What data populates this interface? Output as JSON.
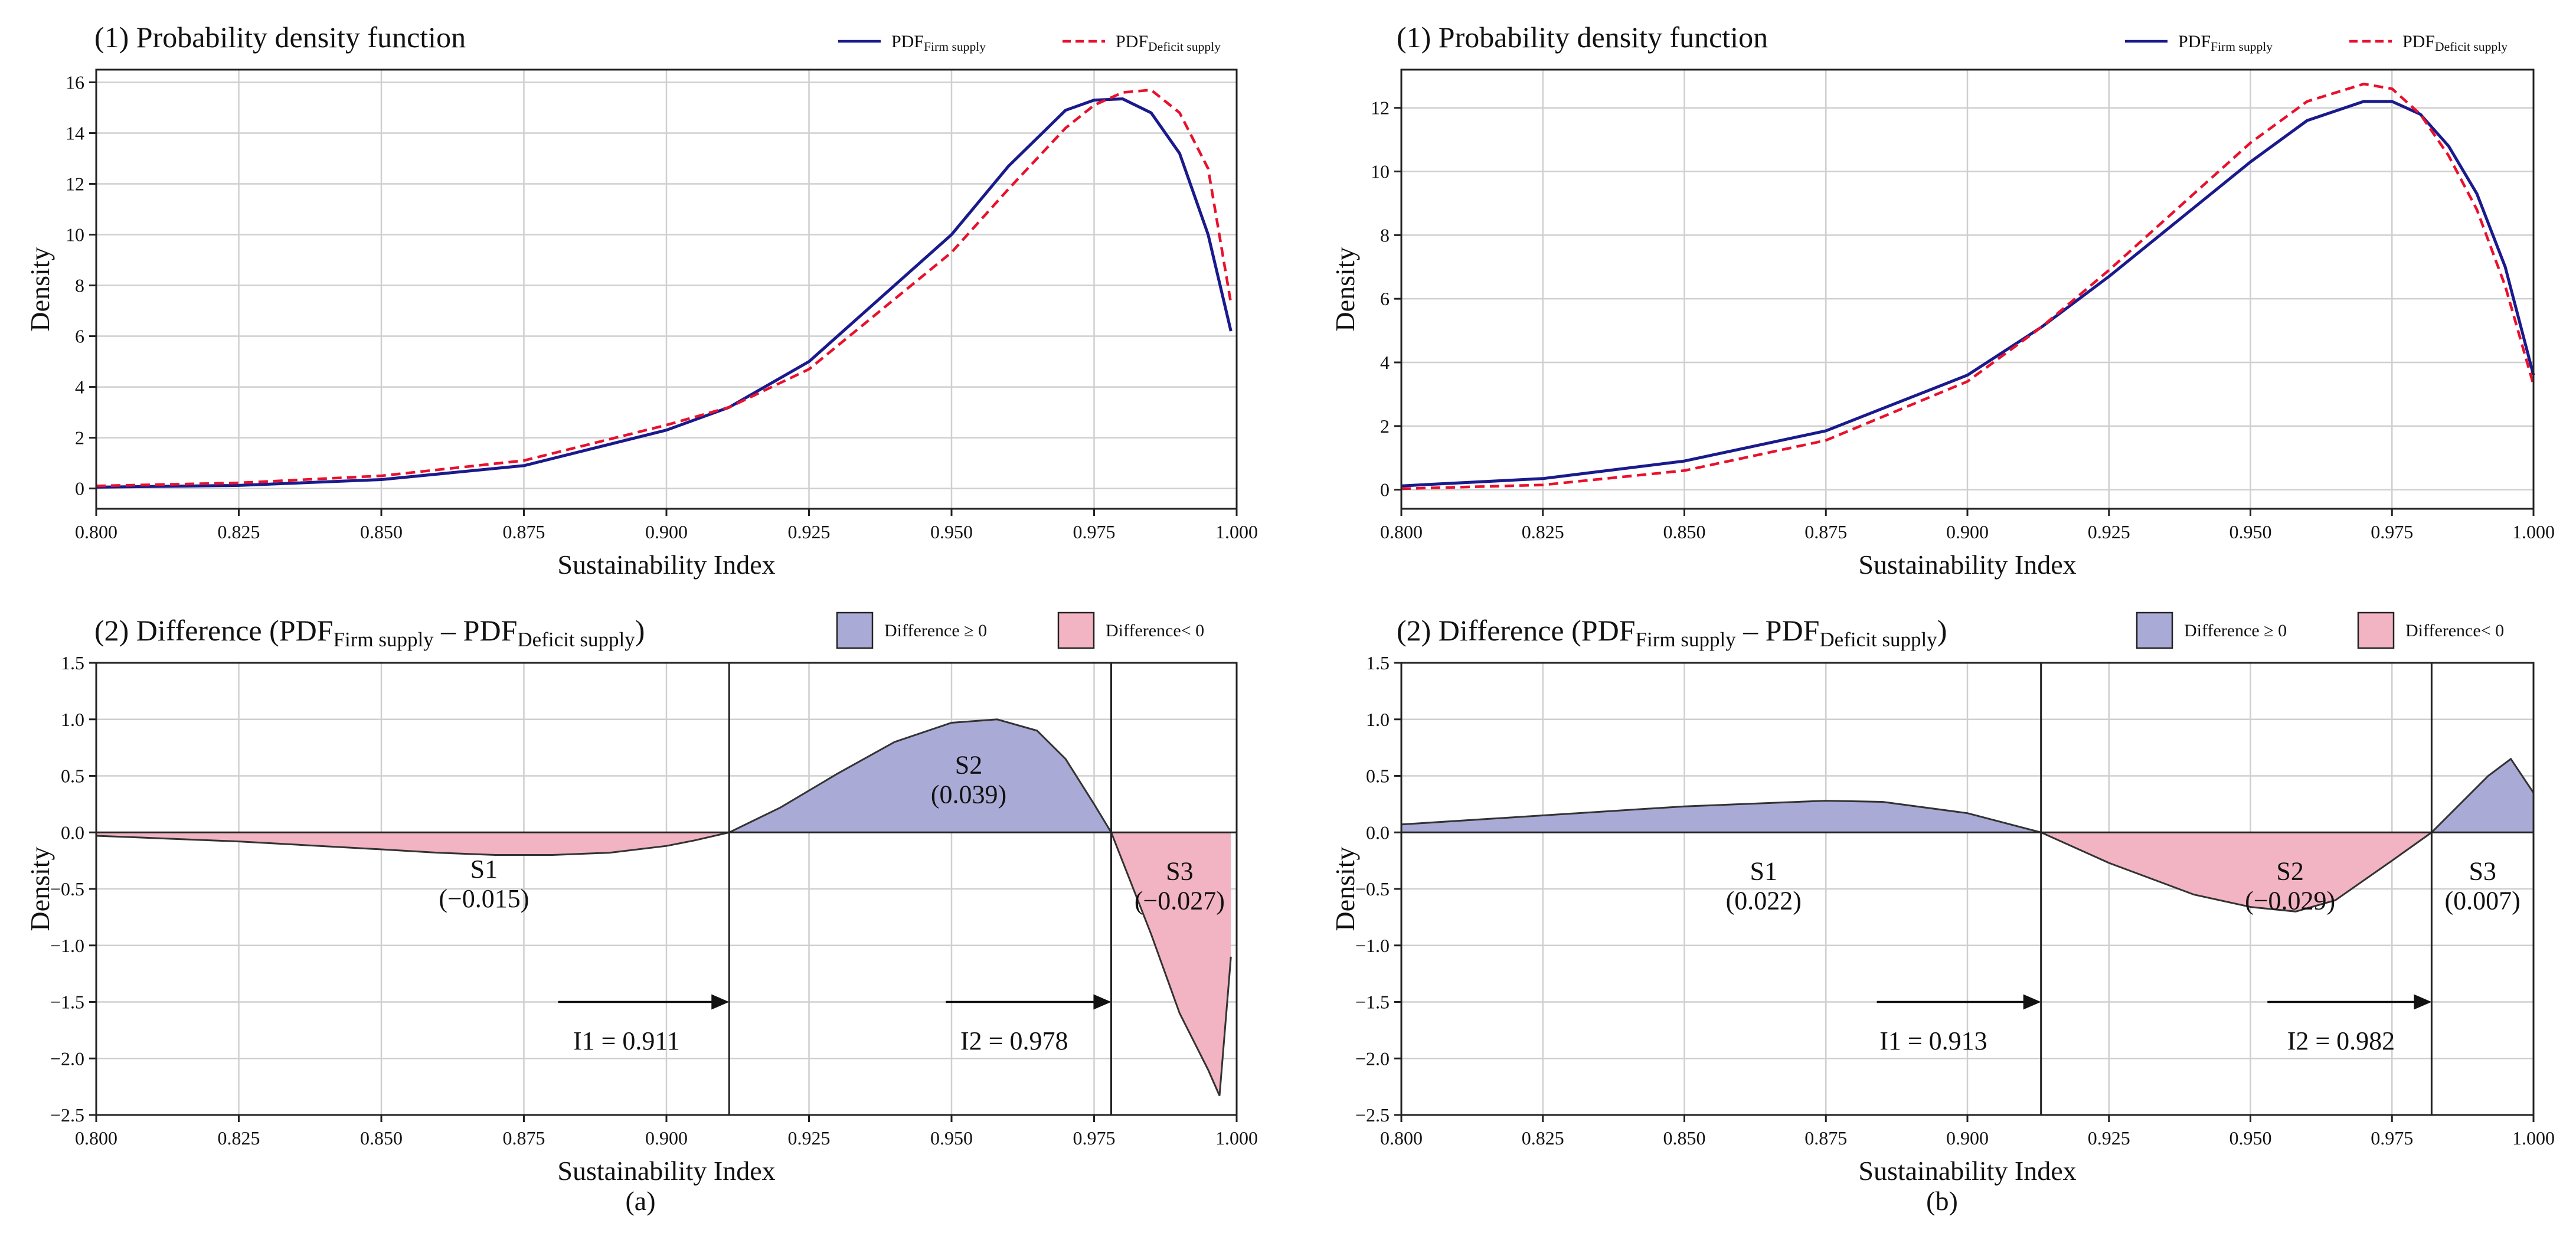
{
  "chart_data": [
    {
      "id": "a1",
      "type": "line",
      "title": "(1) Probability density function",
      "xlabel": "Sustainability Index",
      "ylabel": "Density",
      "xlim": [
        0.8,
        1.0
      ],
      "ylim": [
        -0.8,
        16.5
      ],
      "xticks": [
        0.8,
        0.825,
        0.85,
        0.875,
        0.9,
        0.925,
        0.95,
        0.975,
        1.0
      ],
      "xtick_labels": [
        "0.800",
        "0.825",
        "0.850",
        "0.875",
        "0.900",
        "0.925",
        "0.950",
        "0.975",
        "1.000"
      ],
      "yticks": [
        0,
        2,
        4,
        6,
        8,
        10,
        12,
        14,
        16
      ],
      "ytick_labels": [
        "0",
        "2",
        "4",
        "6",
        "8",
        "10",
        "12",
        "14",
        "16"
      ],
      "legend": [
        {
          "name": "PDF",
          "sub": "Firm supply",
          "color": "#1a1a8c",
          "dash": "solid"
        },
        {
          "name": "PDF",
          "sub": "Deficit supply",
          "color": "#e8112d",
          "dash": "dashed"
        }
      ],
      "series": [
        {
          "name": "PDF Firm supply",
          "color": "#1a1a8c",
          "dash": "solid",
          "x": [
            0.8,
            0.825,
            0.85,
            0.875,
            0.9,
            0.911,
            0.925,
            0.95,
            0.96,
            0.97,
            0.975,
            0.98,
            0.985,
            0.99,
            0.995,
            0.999
          ],
          "y": [
            0.05,
            0.12,
            0.35,
            0.9,
            2.3,
            3.2,
            5.0,
            10.0,
            12.7,
            14.9,
            15.3,
            15.35,
            14.8,
            13.2,
            10.0,
            6.2
          ]
        },
        {
          "name": "PDF Deficit supply",
          "color": "#e8112d",
          "dash": "dashed",
          "x": [
            0.8,
            0.825,
            0.85,
            0.875,
            0.9,
            0.911,
            0.925,
            0.95,
            0.96,
            0.97,
            0.975,
            0.98,
            0.985,
            0.99,
            0.995,
            0.999
          ],
          "y": [
            0.1,
            0.22,
            0.5,
            1.1,
            2.5,
            3.2,
            4.7,
            9.3,
            11.8,
            14.2,
            15.1,
            15.6,
            15.7,
            14.8,
            12.6,
            7.3
          ]
        }
      ]
    },
    {
      "id": "a2",
      "type": "area",
      "title": "(2) Difference (PDF",
      "title_sub1": "Firm supply",
      "title_mid": " – PDF",
      "title_sub2": "Deficit supply",
      "title_end": ")",
      "xlabel": "Sustainability Index",
      "ylabel": "Density",
      "xlim": [
        0.8,
        1.0
      ],
      "ylim": [
        -2.5,
        1.5
      ],
      "xticks": [
        0.8,
        0.825,
        0.85,
        0.875,
        0.9,
        0.925,
        0.95,
        0.975,
        1.0
      ],
      "xtick_labels": [
        "0.800",
        "0.825",
        "0.850",
        "0.875",
        "0.900",
        "0.925",
        "0.950",
        "0.975",
        "1.000"
      ],
      "yticks": [
        -2.5,
        -2.0,
        -1.5,
        -1.0,
        -0.5,
        0.0,
        0.5,
        1.0,
        1.5
      ],
      "ytick_labels": [
        "−2.5",
        "−2.0",
        "−1.5",
        "−1.0",
        "−0.5",
        "0.0",
        "0.5",
        "1.0",
        "1.5"
      ],
      "legend": [
        {
          "label": "Difference ≥ 0",
          "color": "#aaaad6"
        },
        {
          "label": "Difference< 0",
          "color": "#f2b3c2"
        }
      ],
      "pos_color": "#aaaad6",
      "neg_color": "#f2b3c2",
      "series": [
        {
          "name": "Difference",
          "x": [
            0.8,
            0.825,
            0.85,
            0.86,
            0.87,
            0.875,
            0.88,
            0.89,
            0.9,
            0.905,
            0.911,
            0.92,
            0.93,
            0.94,
            0.95,
            0.958,
            0.965,
            0.97,
            0.975,
            0.978,
            0.985,
            0.99,
            0.995,
            0.997,
            0.999
          ],
          "y": [
            -0.03,
            -0.08,
            -0.15,
            -0.18,
            -0.2,
            -0.2,
            -0.2,
            -0.18,
            -0.12,
            -0.07,
            0.0,
            0.22,
            0.52,
            0.8,
            0.97,
            1.0,
            0.9,
            0.65,
            0.25,
            0.0,
            -0.9,
            -1.6,
            -2.1,
            -2.33,
            -1.1
          ]
        }
      ],
      "vlines": [
        0.911,
        0.978
      ],
      "regions": [
        {
          "name": "S1",
          "value": "(−0.015)",
          "x": 0.868,
          "y": -0.4
        },
        {
          "name": "S2",
          "value": "(0.039)",
          "x": 0.953,
          "y": 0.52
        },
        {
          "name": "S3",
          "value": "(−0.027)",
          "x": 0.99,
          "y": -0.42
        }
      ],
      "arrows": [
        {
          "label": "I1 = 0.911",
          "from": 0.881,
          "to": 0.911,
          "y": -1.5,
          "label_x": 0.893,
          "label_y": -1.92
        },
        {
          "label": "I2 = 0.978",
          "from": 0.949,
          "to": 0.978,
          "y": -1.5,
          "label_x": 0.961,
          "label_y": -1.92
        }
      ]
    },
    {
      "id": "b1",
      "type": "line",
      "title": "(1) Probability density function",
      "xlabel": "Sustainability Index",
      "ylabel": "Density",
      "xlim": [
        0.8,
        1.0
      ],
      "ylim": [
        -0.6,
        13.2
      ],
      "xticks": [
        0.8,
        0.825,
        0.85,
        0.875,
        0.9,
        0.925,
        0.95,
        0.975,
        1.0
      ],
      "xtick_labels": [
        "0.800",
        "0.825",
        "0.850",
        "0.875",
        "0.900",
        "0.925",
        "0.950",
        "0.975",
        "1.000"
      ],
      "yticks": [
        0,
        2,
        4,
        6,
        8,
        10,
        12
      ],
      "ytick_labels": [
        "0",
        "2",
        "4",
        "6",
        "8",
        "10",
        "12"
      ],
      "legend": [
        {
          "name": "PDF",
          "sub": "Firm supply",
          "color": "#1a1a8c",
          "dash": "solid"
        },
        {
          "name": "PDF",
          "sub": "Deficit supply",
          "color": "#e8112d",
          "dash": "dashed"
        }
      ],
      "series": [
        {
          "name": "PDF Firm supply",
          "color": "#1a1a8c",
          "dash": "solid",
          "x": [
            0.8,
            0.825,
            0.85,
            0.875,
            0.9,
            0.913,
            0.925,
            0.95,
            0.96,
            0.97,
            0.975,
            0.98,
            0.985,
            0.99,
            0.995,
            1.0
          ],
          "y": [
            0.12,
            0.35,
            0.9,
            1.85,
            3.6,
            5.1,
            6.7,
            10.3,
            11.6,
            12.2,
            12.2,
            11.8,
            10.8,
            9.3,
            7.0,
            3.6
          ]
        },
        {
          "name": "PDF Deficit supply",
          "color": "#e8112d",
          "dash": "dashed",
          "x": [
            0.8,
            0.825,
            0.85,
            0.875,
            0.9,
            0.913,
            0.925,
            0.95,
            0.96,
            0.97,
            0.975,
            0.98,
            0.985,
            0.99,
            0.995,
            1.0
          ],
          "y": [
            0.03,
            0.15,
            0.6,
            1.55,
            3.4,
            5.1,
            6.9,
            10.9,
            12.2,
            12.75,
            12.6,
            11.8,
            10.5,
            8.8,
            6.4,
            3.3
          ]
        }
      ]
    },
    {
      "id": "b2",
      "type": "area",
      "title": "(2) Difference (PDF",
      "title_sub1": "Firm supply",
      "title_mid": " – PDF",
      "title_sub2": "Deficit supply",
      "title_end": ")",
      "xlabel": "Sustainability Index",
      "ylabel": "Density",
      "xlim": [
        0.8,
        1.0
      ],
      "ylim": [
        -2.5,
        1.5
      ],
      "xticks": [
        0.8,
        0.825,
        0.85,
        0.875,
        0.9,
        0.925,
        0.95,
        0.975,
        1.0
      ],
      "xtick_labels": [
        "0.800",
        "0.825",
        "0.850",
        "0.875",
        "0.900",
        "0.925",
        "0.950",
        "0.975",
        "1.000"
      ],
      "yticks": [
        -2.5,
        -2.0,
        -1.5,
        -1.0,
        -0.5,
        0.0,
        0.5,
        1.0,
        1.5
      ],
      "ytick_labels": [
        "−2.5",
        "−2.0",
        "−1.5",
        "−1.0",
        "−0.5",
        "0.0",
        "0.5",
        "1.0",
        "1.5"
      ],
      "legend": [
        {
          "label": "Difference ≥ 0",
          "color": "#aaaad6"
        },
        {
          "label": "Difference< 0",
          "color": "#f2b3c2"
        }
      ],
      "pos_color": "#aaaad6",
      "neg_color": "#f2b3c2",
      "series": [
        {
          "name": "Difference",
          "x": [
            0.8,
            0.825,
            0.85,
            0.875,
            0.885,
            0.9,
            0.913,
            0.925,
            0.94,
            0.95,
            0.958,
            0.965,
            0.975,
            0.982,
            0.988,
            0.992,
            0.996,
            1.0
          ],
          "y": [
            0.07,
            0.15,
            0.23,
            0.28,
            0.27,
            0.17,
            0.0,
            -0.27,
            -0.55,
            -0.66,
            -0.7,
            -0.6,
            -0.25,
            0.0,
            0.3,
            0.5,
            0.65,
            0.35
          ]
        }
      ],
      "vlines": [
        0.913,
        0.982
      ],
      "regions": [
        {
          "name": "S1",
          "value": "(0.022)",
          "x": 0.864,
          "y": -0.42
        },
        {
          "name": "S2",
          "value": "(−0.029)",
          "x": 0.957,
          "y": -0.42
        },
        {
          "name": "S3",
          "value": "(0.007)",
          "x": 0.991,
          "y": -0.42
        }
      ],
      "arrows": [
        {
          "label": "I1 = 0.913",
          "from": 0.884,
          "to": 0.913,
          "y": -1.5,
          "label_x": 0.894,
          "label_y": -1.92
        },
        {
          "label": "I2 = 0.982",
          "from": 0.953,
          "to": 0.982,
          "y": -1.5,
          "label_x": 0.966,
          "label_y": -1.92
        }
      ]
    }
  ],
  "captions": [
    "(a)",
    "(b)"
  ]
}
